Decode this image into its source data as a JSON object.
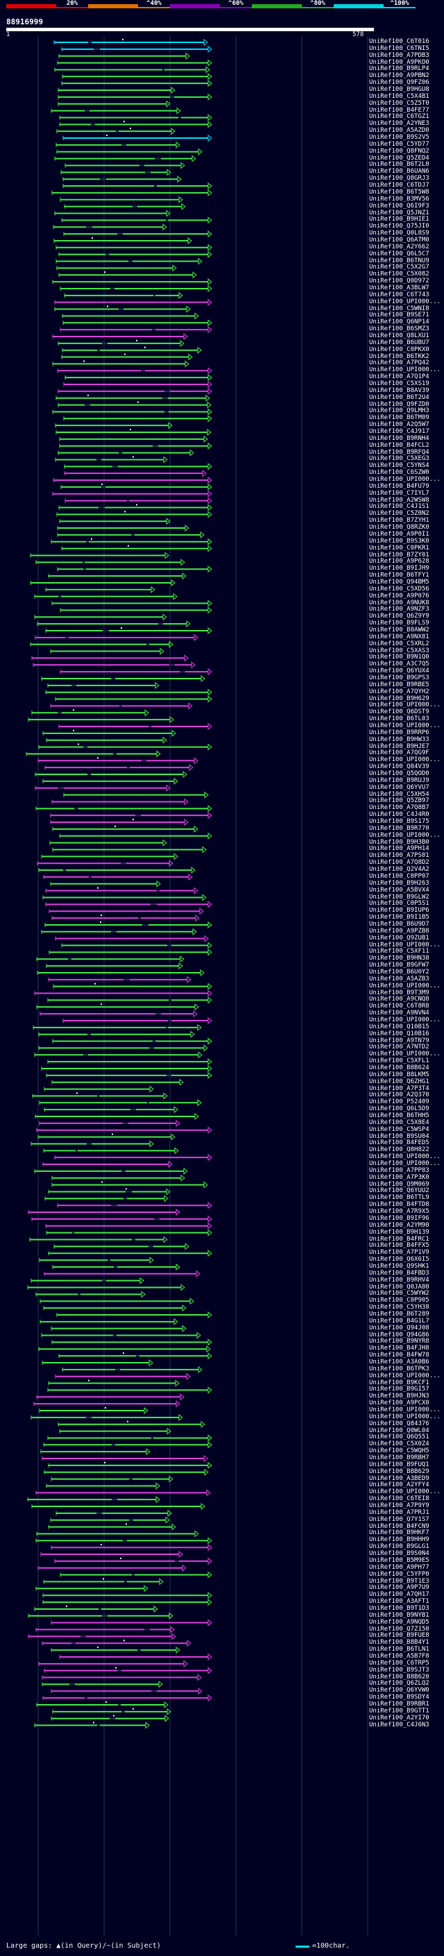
{
  "scale": {
    "labels": [
      "20%",
      "^40%",
      "^60%",
      "^80%",
      "^100%"
    ],
    "colors": [
      "#e00000",
      "#e07000",
      "#8a00b4",
      "#22aa22",
      "#00d4e0"
    ]
  },
  "header": {
    "id": "88916999",
    "axis_start": "1",
    "axis_end": "578"
  },
  "colors": {
    "cyan": "#00e0ff",
    "green": "#44ee44",
    "magenta": "#e040e0",
    "gap": "#222244",
    "grid": "#223355"
  },
  "hits": [
    {
      "label": "UniRef100_C6T016",
      "color": "cyan"
    },
    {
      "label": "UniRef100_C6TNI5",
      "color": "cyan"
    },
    {
      "label": "UniRef100_A7PDB3",
      "color": "green"
    },
    {
      "label": "UniRef100_A9PKO0",
      "color": "green"
    },
    {
      "label": "UniRef100_B9RLP4",
      "color": "green"
    },
    {
      "label": "UniRef100_A9PBN2",
      "color": "green"
    },
    {
      "label": "UniRef100_Q9FZ06",
      "color": "green"
    },
    {
      "label": "UniRef100_B9HGU8",
      "color": "green"
    },
    {
      "label": "UniRef100_C5X4B1",
      "color": "green"
    },
    {
      "label": "UniRef100_C5Z5T0",
      "color": "green"
    },
    {
      "label": "UniRef100_B4FE77",
      "color": "green"
    },
    {
      "label": "UniRef100_C6TGZ1",
      "color": "green"
    },
    {
      "label": "UniRef100_A2YNE3",
      "color": "green"
    },
    {
      "label": "UniRef100_A5AZD0",
      "color": "green"
    },
    {
      "label": "UniRef100_B9S2V5",
      "color": "cyan"
    },
    {
      "label": "UniRef100_C5YD77",
      "color": "green"
    },
    {
      "label": "UniRef100_Q8FNQ2",
      "color": "green"
    },
    {
      "label": "UniRef100_Q5ZED4",
      "color": "green"
    },
    {
      "label": "UniRef100_B6T2L0",
      "color": "green"
    },
    {
      "label": "UniRef100_B6UAN6",
      "color": "green"
    },
    {
      "label": "UniRef100_Q8GRJ3",
      "color": "green"
    },
    {
      "label": "UniRef100_C6TDJ7",
      "color": "green"
    },
    {
      "label": "UniRef100_B6T5W8",
      "color": "green"
    },
    {
      "label": "UniRef100_B3MV56",
      "color": "green"
    },
    {
      "label": "UniRef100_Q6I9F3",
      "color": "green"
    },
    {
      "label": "UniRef100_Q5JNZ1",
      "color": "green"
    },
    {
      "label": "UniRef100_B9HIE1",
      "color": "green"
    },
    {
      "label": "UniRef100_Q75JI0",
      "color": "green"
    },
    {
      "label": "UniRef100_Q0L8S9",
      "color": "green"
    },
    {
      "label": "UniRef100_Q6ATM0",
      "color": "green"
    },
    {
      "label": "UniRef100_A2Y662",
      "color": "green"
    },
    {
      "label": "UniRef100_Q6L5C7",
      "color": "green"
    },
    {
      "label": "UniRef100_B6TNU9",
      "color": "green"
    },
    {
      "label": "UniRef100_C5X2G7",
      "color": "green"
    },
    {
      "label": "UniRef100_C5X082",
      "color": "green"
    },
    {
      "label": "UniRef100_Q0D972",
      "color": "green"
    },
    {
      "label": "UniRef100_A3BLW7",
      "color": "green"
    },
    {
      "label": "UniRef100_C6T743",
      "color": "green"
    },
    {
      "label": "UniRef100_UPI000...",
      "color": "magenta"
    },
    {
      "label": "UniRef100_C5WNI8",
      "color": "green"
    },
    {
      "label": "UniRef100_B9SE71",
      "color": "green"
    },
    {
      "label": "UniRef100_Q6NP14",
      "color": "green"
    },
    {
      "label": "UniRef100_B6SMZ3",
      "color": "magenta"
    },
    {
      "label": "UniRef100_Q8LXU1",
      "color": "magenta"
    },
    {
      "label": "UniRef100_B6UBU7",
      "color": "green"
    },
    {
      "label": "UniRef100_C0PKX0",
      "color": "green"
    },
    {
      "label": "UniRef100_B6TKK2",
      "color": "green"
    },
    {
      "label": "UniRef100_A7PQ42",
      "color": "green"
    },
    {
      "label": "UniRef100_UPI000...",
      "color": "magenta"
    },
    {
      "label": "UniRef100_A7Q1P4",
      "color": "green"
    },
    {
      "label": "UniRef100_C5XS19",
      "color": "magenta"
    },
    {
      "label": "UniRef100_B8AV39",
      "color": "magenta"
    },
    {
      "label": "UniRef100_B6T2U4",
      "color": "green"
    },
    {
      "label": "UniRef100_Q9FZD0",
      "color": "green"
    },
    {
      "label": "UniRef100_Q9LMH3",
      "color": "green"
    },
    {
      "label": "UniRef100_B6TM09",
      "color": "green"
    },
    {
      "label": "UniRef100_A2Q5W7",
      "color": "green"
    },
    {
      "label": "UniRef100_C4J917",
      "color": "green"
    },
    {
      "label": "UniRef100_B9RNH4",
      "color": "green"
    },
    {
      "label": "UniRef100_B4FCL2",
      "color": "green"
    },
    {
      "label": "UniRef100_B9RFQ4",
      "color": "green"
    },
    {
      "label": "UniRef100_C5XEG3",
      "color": "green"
    },
    {
      "label": "UniRef100_C5YNS4",
      "color": "green"
    },
    {
      "label": "UniRef100_C6SZW0",
      "color": "magenta"
    },
    {
      "label": "UniRef100_UPI000...",
      "color": "magenta"
    },
    {
      "label": "UniRef100_B4FU79",
      "color": "green"
    },
    {
      "label": "UniRef100_C7IYL7",
      "color": "magenta"
    },
    {
      "label": "UniRef100_A2WSW8",
      "color": "magenta"
    },
    {
      "label": "UniRef100_C4J1S1",
      "color": "green"
    },
    {
      "label": "UniRef100_C5Z0N2",
      "color": "green"
    },
    {
      "label": "UniRef100_B7ZYH1",
      "color": "green"
    },
    {
      "label": "UniRef100_Q8RZK0",
      "color": "green"
    },
    {
      "label": "UniRef100_A9P0I1",
      "color": "green"
    },
    {
      "label": "UniRef100_B9S3K0",
      "color": "green"
    },
    {
      "label": "UniRef100_C0PKR1",
      "color": "green"
    },
    {
      "label": "UniRef100_B7ZY01",
      "color": "green"
    },
    {
      "label": "UniRef100_A9P628",
      "color": "green"
    },
    {
      "label": "UniRef100_B9IJH9",
      "color": "green"
    },
    {
      "label": "UniRef100_B6TFY1",
      "color": "green"
    },
    {
      "label": "UniRef100_Q94BM5",
      "color": "green"
    },
    {
      "label": "UniRef100_C5XD56",
      "color": "green"
    },
    {
      "label": "UniRef100_A9P076",
      "color": "green"
    },
    {
      "label": "UniRef100_A9NUK8",
      "color": "green"
    },
    {
      "label": "UniRef100_A9NZF3",
      "color": "green"
    },
    {
      "label": "UniRef100_Q6Z9Y9",
      "color": "green"
    },
    {
      "label": "UniRef100_B9FLS9",
      "color": "green"
    },
    {
      "label": "UniRef100_B8AWW2",
      "color": "green"
    },
    {
      "label": "UniRef100_A9NX81",
      "color": "magenta"
    },
    {
      "label": "UniRef100_C5XRL2",
      "color": "green"
    },
    {
      "label": "UniRef100_C5XAS3",
      "color": "green"
    },
    {
      "label": "UniRef100_B9N1Q0",
      "color": "magenta"
    },
    {
      "label": "UniRef100_A3C7Q5",
      "color": "magenta"
    },
    {
      "label": "UniRef100_Q6YUX4",
      "color": "magenta"
    },
    {
      "label": "UniRef100_B9GPS3",
      "color": "green"
    },
    {
      "label": "UniRef100_B9RBE5",
      "color": "green"
    },
    {
      "label": "UniRef100_A7QYH2",
      "color": "green"
    },
    {
      "label": "UniRef100_B9H629",
      "color": "green"
    },
    {
      "label": "UniRef100_UPI000...",
      "color": "magenta"
    },
    {
      "label": "UniRef100_Q6DST9",
      "color": "green"
    },
    {
      "label": "UniRef100_B6TL03",
      "color": "green"
    },
    {
      "label": "UniRef100_UPI000...",
      "color": "magenta"
    },
    {
      "label": "UniRef100_B9RRP6",
      "color": "green"
    },
    {
      "label": "UniRef100_B9HW33",
      "color": "green"
    },
    {
      "label": "UniRef100_B9HJE7",
      "color": "green"
    },
    {
      "label": "UniRef100_A7QG9F",
      "color": "green"
    },
    {
      "label": "UniRef100_UPI000...",
      "color": "magenta"
    },
    {
      "label": "UniRef100_Q84V39",
      "color": "magenta"
    },
    {
      "label": "UniRef100_Q5QOD0",
      "color": "green"
    },
    {
      "label": "UniRef100_B9RUJ9",
      "color": "green"
    },
    {
      "label": "UniRef100_Q6YVU7",
      "color": "magenta"
    },
    {
      "label": "UniRef100_C5XH54",
      "color": "green"
    },
    {
      "label": "UniRef100_Q5ZB97",
      "color": "magenta"
    },
    {
      "label": "UniRef100_A7Q8B7",
      "color": "green"
    },
    {
      "label": "UniRef100_C4J4R0",
      "color": "magenta"
    },
    {
      "label": "UniRef100_B9S175",
      "color": "magenta"
    },
    {
      "label": "UniRef100_B9R770",
      "color": "green"
    },
    {
      "label": "UniRef100_UPI000...",
      "color": "green"
    },
    {
      "label": "UniRef100_B9H3B0",
      "color": "green"
    },
    {
      "label": "UniRef100_A9PH14",
      "color": "green"
    },
    {
      "label": "UniRef100_A7PS01",
      "color": "green"
    },
    {
      "label": "UniRef100_A7Q8D2",
      "color": "magenta"
    },
    {
      "label": "UniRef100_Q2V4A2",
      "color": "green"
    },
    {
      "label": "UniRef100_C0PP07",
      "color": "magenta"
    },
    {
      "label": "UniRef100_B9H263",
      "color": "green"
    },
    {
      "label": "UniRef100_A5BVX4",
      "color": "magenta"
    },
    {
      "label": "UniRef100_B9GLW2",
      "color": "green"
    },
    {
      "label": "UniRef100_C0P5S1",
      "color": "magenta"
    },
    {
      "label": "UniRef100_B9IUP6",
      "color": "magenta"
    },
    {
      "label": "UniRef100_B9I1B5",
      "color": "magenta"
    },
    {
      "label": "UniRef100_B6U9D7",
      "color": "green"
    },
    {
      "label": "UniRef100_A9PZB8",
      "color": "green"
    },
    {
      "label": "UniRef100_Q9ZUB1",
      "color": "magenta"
    },
    {
      "label": "UniRef100_UPI000...",
      "color": "green"
    },
    {
      "label": "UniRef100_C5XF11",
      "color": "green"
    },
    {
      "label": "UniRef100_B9HN38",
      "color": "green"
    },
    {
      "label": "UniRef100_B9GFW7",
      "color": "green"
    },
    {
      "label": "UniRef100_B6U0Y2",
      "color": "green"
    },
    {
      "label": "UniRef100_A5AZB3",
      "color": "magenta"
    },
    {
      "label": "UniRef100_UPI000...",
      "color": "green"
    },
    {
      "label": "UniRef100_B9T3M9",
      "color": "magenta"
    },
    {
      "label": "UniRef100_A9CNQ8",
      "color": "green"
    },
    {
      "label": "UniRef100_C6T8R8",
      "color": "green"
    },
    {
      "label": "UniRef100_A9NVN4",
      "color": "magenta"
    },
    {
      "label": "UniRef100_UPI000...",
      "color": "magenta"
    },
    {
      "label": "UniRef100_Q10B15",
      "color": "green"
    },
    {
      "label": "UniRef100_Q10B16",
      "color": "green"
    },
    {
      "label": "UniRef100_A9TN79",
      "color": "green"
    },
    {
      "label": "UniRef100_A7NTD2",
      "color": "green"
    },
    {
      "label": "UniRef100_UPI000...",
      "color": "green"
    },
    {
      "label": "UniRef100_C5XFL1",
      "color": "green"
    },
    {
      "label": "UniRef100_B8B624",
      "color": "green"
    },
    {
      "label": "UniRef100_B8LKM5",
      "color": "green"
    },
    {
      "label": "UniRef100_Q6ZHG1",
      "color": "green"
    },
    {
      "label": "UniRef100_A7P3T4",
      "color": "green"
    },
    {
      "label": "UniRef100_A2Q370",
      "color": "green"
    },
    {
      "label": "UniRef100_P52409",
      "color": "green"
    },
    {
      "label": "UniRef100_Q6L5D9",
      "color": "green"
    },
    {
      "label": "UniRef100_B6THH5",
      "color": "green"
    },
    {
      "label": "UniRef100_C5X8E4",
      "color": "magenta"
    },
    {
      "label": "UniRef100_C5WSP4",
      "color": "magenta"
    },
    {
      "label": "UniRef100_B9SU04",
      "color": "green"
    },
    {
      "label": "UniRef100_B4FED5",
      "color": "green"
    },
    {
      "label": "UniRef100_Q8H822",
      "color": "green"
    },
    {
      "label": "UniRef100_UPI000...",
      "color": "magenta"
    },
    {
      "label": "UniRef100_UPI000...",
      "color": "magenta"
    },
    {
      "label": "UniRef100_A7PP83",
      "color": "green"
    },
    {
      "label": "UniRef100_A7P3K0",
      "color": "green"
    },
    {
      "label": "UniRef100_Q9M069",
      "color": "green"
    },
    {
      "label": "UniRef100_Q6YUU2",
      "color": "green"
    },
    {
      "label": "UniRef100_B6TTL9",
      "color": "green"
    },
    {
      "label": "UniRef100_B4FTD8",
      "color": "magenta"
    },
    {
      "label": "UniRef100_A7R9X5",
      "color": "magenta"
    },
    {
      "label": "UniRef100_B9IF96",
      "color": "magenta"
    },
    {
      "label": "UniRef100_A2YM90",
      "color": "magenta"
    },
    {
      "label": "UniRef100_B9H139",
      "color": "green"
    },
    {
      "label": "UniRef100_B4FRC1",
      "color": "green"
    },
    {
      "label": "UniRef100_B4FFX5",
      "color": "green"
    },
    {
      "label": "UniRef100_A7P1V9",
      "color": "green"
    },
    {
      "label": "UniRef100_Q6X6I5",
      "color": "green"
    },
    {
      "label": "UniRef100_Q9SHK1",
      "color": "green"
    },
    {
      "label": "UniRef100_B4FBD3",
      "color": "magenta"
    },
    {
      "label": "UniRef100_B9RHV4",
      "color": "green"
    },
    {
      "label": "UniRef100_Q0JA80",
      "color": "green"
    },
    {
      "label": "UniRef100_C5WYW2",
      "color": "green"
    },
    {
      "label": "UniRef100_C0P905",
      "color": "green"
    },
    {
      "label": "UniRef100_C5YH38",
      "color": "green"
    },
    {
      "label": "UniRef100_B6T289",
      "color": "green"
    },
    {
      "label": "UniRef100_B4G1L7",
      "color": "green"
    },
    {
      "label": "UniRef100_Q94J08",
      "color": "green"
    },
    {
      "label": "UniRef100_Q94G86",
      "color": "green"
    },
    {
      "label": "UniRef100_B9NYR8",
      "color": "green"
    },
    {
      "label": "UniRef100_B4FJH8",
      "color": "green"
    },
    {
      "label": "UniRef100_B4FW78",
      "color": "green"
    },
    {
      "label": "UniRef100_A3A0B6",
      "color": "green"
    },
    {
      "label": "UniRef100_B6TPK3",
      "color": "green"
    },
    {
      "label": "UniRef100_UPI000...",
      "color": "magenta"
    },
    {
      "label": "UniRef100_B9KCF1",
      "color": "green"
    },
    {
      "label": "UniRef100_B9GI57",
      "color": "green"
    },
    {
      "label": "UniRef100_B9HJN3",
      "color": "magenta"
    },
    {
      "label": "UniRef100_A9PCX0",
      "color": "magenta"
    },
    {
      "label": "UniRef100_UPI000...",
      "color": "green"
    },
    {
      "label": "UniRef100_UPI000...",
      "color": "green"
    },
    {
      "label": "UniRef100_Q84376",
      "color": "green"
    },
    {
      "label": "UniRef100_Q0WL04",
      "color": "green"
    },
    {
      "label": "UniRef100_Q6Q551",
      "color": "green"
    },
    {
      "label": "UniRef100_C5X0Z4",
      "color": "green"
    },
    {
      "label": "UniRef100_C5WQH5",
      "color": "green"
    },
    {
      "label": "UniRef100_B9RBH7",
      "color": "magenta"
    },
    {
      "label": "UniRef100_B9FUQ1",
      "color": "green"
    },
    {
      "label": "UniRef100_B8B629",
      "color": "green"
    },
    {
      "label": "UniRef100_A3BED9",
      "color": "green"
    },
    {
      "label": "UniRef100_A2YFY4",
      "color": "green"
    },
    {
      "label": "UniRef100_UPI000...",
      "color": "magenta"
    },
    {
      "label": "UniRef100_C6TEI8",
      "color": "green"
    },
    {
      "label": "UniRef100_A7P9Y9",
      "color": "green"
    },
    {
      "label": "UniRef100_A7PRJ1",
      "color": "green"
    },
    {
      "label": "UniRef100_Q7Y1S7",
      "color": "green"
    },
    {
      "label": "UniRef100_B4FCN9",
      "color": "green"
    },
    {
      "label": "UniRef100_B9HKF7",
      "color": "green"
    },
    {
      "label": "UniRef100_B9HHH9",
      "color": "green"
    },
    {
      "label": "UniRef100_B9GLG1",
      "color": "magenta"
    },
    {
      "label": "UniRef100_B9S0N4",
      "color": "magenta"
    },
    {
      "label": "UniRef100_B5M9E5",
      "color": "magenta"
    },
    {
      "label": "UniRef100_A9PH77",
      "color": "magenta"
    },
    {
      "label": "UniRef100_C5YFP0",
      "color": "green"
    },
    {
      "label": "UniRef100_B9T1E3",
      "color": "green"
    },
    {
      "label": "UniRef100_A9P7U9",
      "color": "green"
    },
    {
      "label": "UniRef100_A7QH17",
      "color": "green"
    },
    {
      "label": "UniRef100_A3AFT1",
      "color": "green"
    },
    {
      "label": "UniRef100_B9T1D3",
      "color": "green"
    },
    {
      "label": "UniRef100_B9NYB1",
      "color": "green"
    },
    {
      "label": "UniRef100_A9NQD5",
      "color": "magenta"
    },
    {
      "label": "UniRef100_Q7Z150",
      "color": "magenta"
    },
    {
      "label": "UniRef100_B9FUE8",
      "color": "magenta"
    },
    {
      "label": "UniRef100_B8B4Y1",
      "color": "magenta"
    },
    {
      "label": "UniRef100_B6TLN1",
      "color": "green"
    },
    {
      "label": "UniRef100_A5B7F8",
      "color": "magenta"
    },
    {
      "label": "UniRef100_C6TRP5",
      "color": "magenta"
    },
    {
      "label": "UniRef100_B9SJT3",
      "color": "magenta"
    },
    {
      "label": "UniRef100_B8B620",
      "color": "magenta"
    },
    {
      "label": "UniRef100_Q6ZLQ2",
      "color": "green"
    },
    {
      "label": "UniRef100_Q6YVW0",
      "color": "magenta"
    },
    {
      "label": "UniRef100_B9SDY4",
      "color": "magenta"
    },
    {
      "label": "UniRef100_B9RBR1",
      "color": "green"
    },
    {
      "label": "UniRef100_B9GTT1",
      "color": "green"
    },
    {
      "label": "UniRef100_A2YI70",
      "color": "green"
    },
    {
      "label": "UniRef100_C4J6N3",
      "color": "green"
    }
  ],
  "legend": {
    "left": "Large gaps: ▲(in Query)/~(in Subject)",
    "right": "=100char."
  }
}
